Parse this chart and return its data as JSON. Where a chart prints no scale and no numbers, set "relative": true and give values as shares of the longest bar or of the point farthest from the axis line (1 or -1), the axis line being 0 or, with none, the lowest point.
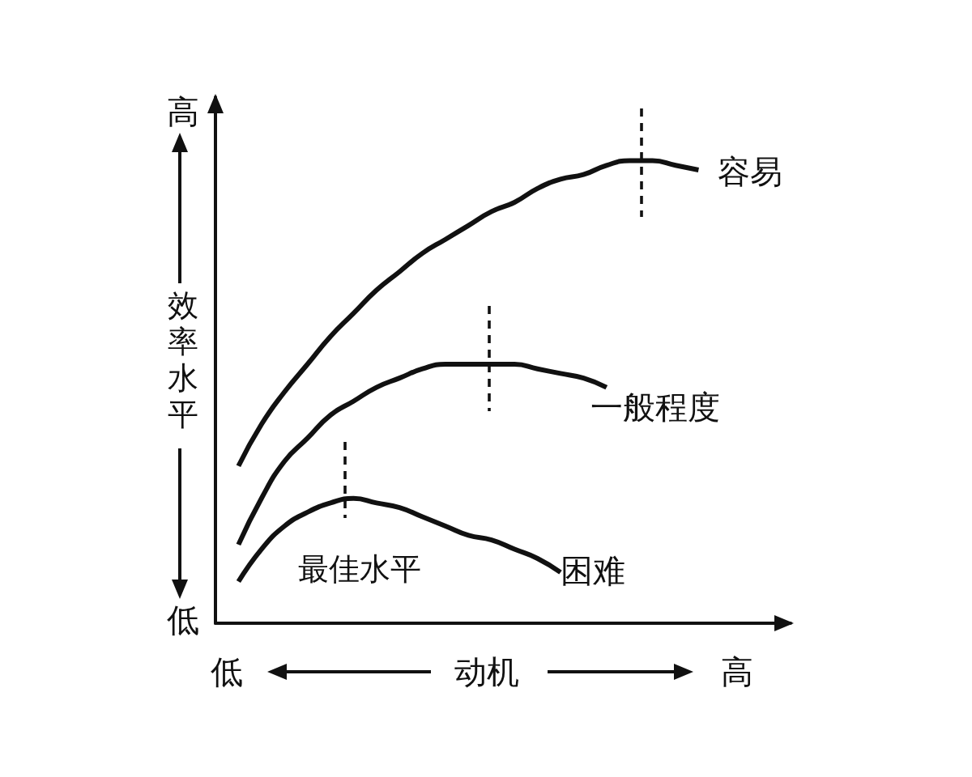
{
  "chart_data": {
    "type": "line",
    "relative": true,
    "xlabel": "动机",
    "ylabel": "效率水平",
    "categories": [
      null,
      null,
      null,
      null,
      null,
      null,
      null,
      null,
      null,
      null,
      null,
      null,
      null,
      null,
      null,
      null,
      null,
      null,
      null,
      null,
      null,
      null,
      null,
      null,
      null,
      null
    ],
    "series": [
      {
        "name": "容易",
        "color": "#111111",
        "values": [
          null,
          0.34,
          0.43,
          0.5,
          0.56,
          0.62,
          0.67,
          0.72,
          0.76,
          0.8,
          0.83,
          0.86,
          0.89,
          0.91,
          0.94,
          0.96,
          0.97,
          0.99,
          1,
          1,
          0.99,
          0.98,
          null,
          null,
          null,
          null
        ]
      },
      {
        "name": "一般程度",
        "color": "#111111",
        "values": [
          null,
          0.17,
          0.27,
          0.35,
          0.4,
          0.45,
          0.48,
          0.51,
          0.53,
          0.55,
          0.56,
          0.56,
          0.56,
          0.56,
          0.55,
          0.54,
          0.53,
          0.51,
          null,
          null,
          null,
          null,
          null,
          null,
          null,
          null
        ]
      },
      {
        "name": "困难",
        "color": "#111111",
        "values": [
          null,
          0.09,
          0.16,
          0.21,
          0.24,
          0.26,
          0.27,
          0.26,
          0.25,
          0.23,
          0.21,
          0.19,
          0.18,
          0.16,
          0.14,
          0.11,
          null,
          null,
          null,
          null,
          null,
          null,
          null,
          null,
          null,
          null
        ]
      }
    ],
    "annotations": [
      "高",
      "最佳水平",
      "低",
      "低",
      "高"
    ]
  }
}
